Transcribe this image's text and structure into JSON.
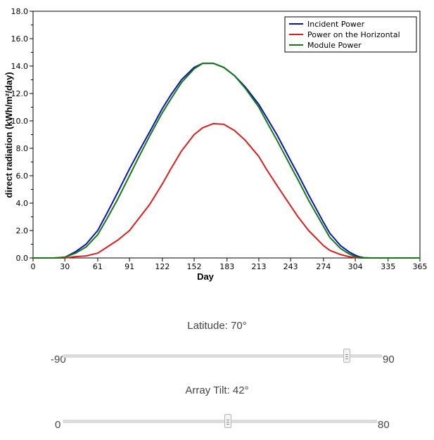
{
  "chart_data": {
    "type": "line",
    "xlabel": "Day",
    "ylabel": "direct radiation (kWh/m²/day)",
    "xlim": [
      0,
      365
    ],
    "ylim": [
      0,
      18
    ],
    "x_ticks": [
      "0",
      "30",
      "61",
      "91",
      "122",
      "152",
      "183",
      "213",
      "243",
      "274",
      "304",
      "335",
      "365"
    ],
    "y_ticks": [
      "0.0",
      "2.0",
      "4.0",
      "6.0",
      "8.0",
      "10.0",
      "12.0",
      "14.0",
      "16.0",
      "18.0"
    ],
    "x": [
      0,
      20,
      30,
      35,
      40,
      50,
      61,
      70,
      80,
      91,
      100,
      110,
      122,
      130,
      140,
      152,
      160,
      170,
      180,
      190,
      200,
      213,
      220,
      230,
      243,
      250,
      260,
      274,
      280,
      290,
      298,
      304,
      308,
      312,
      320,
      330,
      365
    ],
    "series": [
      {
        "name": "Incident Power",
        "color": "#0a14b4",
        "values": [
          0,
          0,
          0.05,
          0.25,
          0.45,
          1.0,
          2.0,
          3.3,
          4.8,
          6.5,
          7.8,
          9.2,
          10.9,
          11.9,
          13.0,
          13.9,
          14.2,
          14.2,
          13.9,
          13.3,
          12.5,
          11.2,
          10.3,
          9.0,
          7.1,
          6.1,
          4.6,
          2.6,
          1.8,
          0.9,
          0.45,
          0.2,
          0.08,
          0.02,
          0,
          0,
          0
        ]
      },
      {
        "name": "Power on the Horizontal",
        "color": "#dc1e1e",
        "values": [
          0,
          0,
          0.0,
          0.05,
          0.1,
          0.15,
          0.35,
          0.8,
          1.3,
          2.0,
          2.9,
          3.9,
          5.4,
          6.5,
          7.8,
          9.0,
          9.5,
          9.8,
          9.75,
          9.3,
          8.6,
          7.4,
          6.5,
          5.3,
          3.8,
          3.0,
          2.0,
          0.9,
          0.55,
          0.25,
          0.1,
          0.03,
          0,
          0,
          0,
          0,
          0
        ]
      },
      {
        "name": "Module Power",
        "color": "#137a13",
        "values": [
          0,
          0,
          0.05,
          0.2,
          0.35,
          0.8,
          1.7,
          2.9,
          4.3,
          6.0,
          7.4,
          8.9,
          10.6,
          11.6,
          12.8,
          13.8,
          14.2,
          14.2,
          13.9,
          13.3,
          12.4,
          11.0,
          10.0,
          8.6,
          6.7,
          5.7,
          4.2,
          2.3,
          1.5,
          0.7,
          0.3,
          0.1,
          0.03,
          0,
          0,
          0,
          0
        ]
      }
    ],
    "legend_position": "top-right"
  },
  "sliders": [
    {
      "title": "Latitude: 70°",
      "min_label": "-90",
      "max_label": "90",
      "fraction": 0.889
    },
    {
      "title": "Array Tilt: 42°",
      "min_label": "0",
      "max_label": "80",
      "fraction": 0.525
    }
  ]
}
